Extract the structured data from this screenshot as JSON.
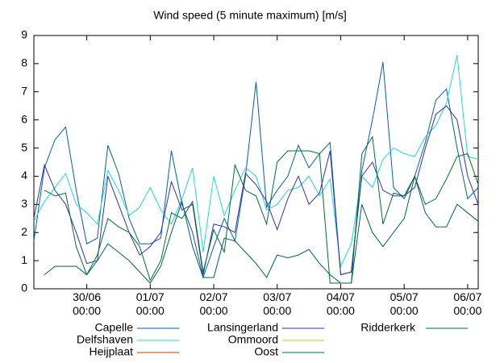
{
  "chart_data": {
    "type": "line",
    "title": "Wind speed (5 minute maximum) [m/s]",
    "x": [
      "29/06 04:00",
      "29/06 08:00",
      "29/06 12:00",
      "29/06 16:00",
      "29/06 20:00",
      "30/06 00:00",
      "30/06 04:00",
      "30/06 08:00",
      "30/06 12:00",
      "30/06 16:00",
      "30/06 20:00",
      "01/07 00:00",
      "01/07 04:00",
      "01/07 08:00",
      "01/07 12:00",
      "01/07 16:00",
      "01/07 20:00",
      "02/07 00:00",
      "02/07 04:00",
      "02/07 08:00",
      "02/07 12:00",
      "02/07 16:00",
      "02/07 20:00",
      "03/07 00:00",
      "03/07 04:00",
      "03/07 08:00",
      "03/07 12:00",
      "03/07 16:00",
      "03/07 20:00",
      "04/07 00:00",
      "04/07 04:00",
      "04/07 08:00",
      "04/07 12:00",
      "04/07 16:00",
      "04/07 20:00",
      "05/07 00:00",
      "05/07 04:00",
      "05/07 08:00",
      "05/07 12:00",
      "05/07 16:00",
      "05/07 20:00",
      "06/07 00:00",
      "06/07 04:00"
    ],
    "series": [
      {
        "name": "Capelle",
        "color": "#0060ad",
        "values": [
          1.7,
          4.3,
          5.3,
          5.75,
          3.5,
          1.6,
          1.8,
          5.1,
          4.1,
          2.5,
          1.6,
          1.6,
          1.8,
          4.9,
          3.0,
          2.0,
          0.4,
          1.5,
          2.5,
          1.7,
          4.0,
          7.35,
          2.9,
          3.5,
          4.0,
          5.1,
          4.3,
          4.8,
          5.2,
          0.5,
          0.6,
          4.2,
          6.0,
          8.05,
          3.6,
          3.2,
          4.0,
          5.2,
          6.7,
          7.1,
          5.0,
          3.2,
          3.6
        ]
      },
      {
        "name": "Delfshaven",
        "color": "#20d8d8",
        "values": [
          2.4,
          3.1,
          3.6,
          4.1,
          3.0,
          2.7,
          2.3,
          4.2,
          3.5,
          2.6,
          2.9,
          3.6,
          2.8,
          2.3,
          3.2,
          4.3,
          1.3,
          4.0,
          2.6,
          3.5,
          4.3,
          4.0,
          2.8,
          3.0,
          3.5,
          3.6,
          4.0,
          3.3,
          3.9,
          0.8,
          1.6,
          4.0,
          3.6,
          4.6,
          5.0,
          4.8,
          4.7,
          5.4,
          5.8,
          6.6,
          8.3,
          4.7,
          4.6
        ]
      },
      {
        "name": "Heijplaat",
        "color": "#c04000",
        "values": [
          null,
          null,
          null,
          null,
          null,
          null,
          null,
          null,
          null,
          null,
          null,
          null,
          null,
          null,
          null,
          null,
          null,
          null,
          null,
          null,
          null,
          null,
          null,
          null,
          null,
          null,
          null,
          null,
          null,
          null,
          null,
          null,
          null,
          null,
          null,
          null,
          null,
          null,
          null,
          null,
          null,
          null,
          null
        ]
      },
      {
        "name": "Lansingerland",
        "color": "#3030b0",
        "values": [
          2.5,
          4.4,
          3.5,
          3.0,
          2.0,
          0.9,
          1.0,
          4.0,
          3.0,
          2.0,
          1.2,
          1.5,
          2.0,
          3.8,
          2.8,
          3.0,
          0.5,
          2.3,
          2.2,
          2.0,
          4.1,
          3.7,
          3.1,
          2.1,
          3.2,
          4.0,
          3.0,
          3.4,
          4.9,
          0.5,
          0.6,
          4.0,
          4.5,
          3.5,
          3.3,
          3.3,
          3.6,
          5.0,
          6.2,
          6.5,
          6.0,
          4.0,
          3.0
        ]
      },
      {
        "name": "Ommoord",
        "color": "#e5c000",
        "values": [
          null,
          null,
          null,
          null,
          null,
          null,
          null,
          null,
          null,
          null,
          null,
          null,
          null,
          null,
          null,
          null,
          null,
          null,
          null,
          null,
          null,
          null,
          null,
          null,
          null,
          null,
          null,
          null,
          null,
          null,
          null,
          null,
          null,
          null,
          null,
          null,
          null,
          null,
          null,
          null,
          null,
          null,
          null
        ]
      },
      {
        "name": "Oost",
        "color": "#007030",
        "values": [
          null,
          3.5,
          3.3,
          3.4,
          1.5,
          0.5,
          1.2,
          2.5,
          2.2,
          2.0,
          1.5,
          0.3,
          1.0,
          2.7,
          2.5,
          3.1,
          0.6,
          2.1,
          1.3,
          4.4,
          3.5,
          3.3,
          2.3,
          4.5,
          4.9,
          4.9,
          4.9,
          4.8,
          0.2,
          0.2,
          0.2,
          4.8,
          5.4,
          2.3,
          3.4,
          3.3,
          4.0,
          3.0,
          3.2,
          3.9,
          4.7,
          4.8,
          3.7
        ]
      },
      {
        "name": "Ridderkerk",
        "color": "#006060",
        "values": [
          null,
          0.5,
          0.8,
          0.8,
          0.8,
          0.5,
          1.0,
          1.6,
          1.3,
          1.0,
          0.6,
          0.2,
          0.8,
          2.0,
          3.1,
          1.5,
          0.4,
          0.4,
          1.8,
          1.7,
          1.3,
          0.9,
          0.4,
          1.2,
          1.1,
          1.2,
          1.4,
          0.9,
          0.5,
          0.2,
          0.2,
          3.0,
          2.0,
          1.5,
          2.0,
          2.5,
          4.0,
          2.7,
          2.2,
          2.2,
          3.0,
          2.7,
          2.4
        ]
      }
    ],
    "xlim": [
      "29/06 04:00",
      "06/07 04:00"
    ],
    "xticks": [
      "30/06 00:00",
      "01/07 00:00",
      "02/07 00:00",
      "03/07 00:00",
      "04/07 00:00",
      "05/07 00:00",
      "06/07 00:00"
    ],
    "ylim": [
      0,
      9
    ],
    "yticks": [
      0,
      1,
      2,
      3,
      4,
      5,
      6,
      7,
      8,
      9
    ],
    "grid": false
  }
}
